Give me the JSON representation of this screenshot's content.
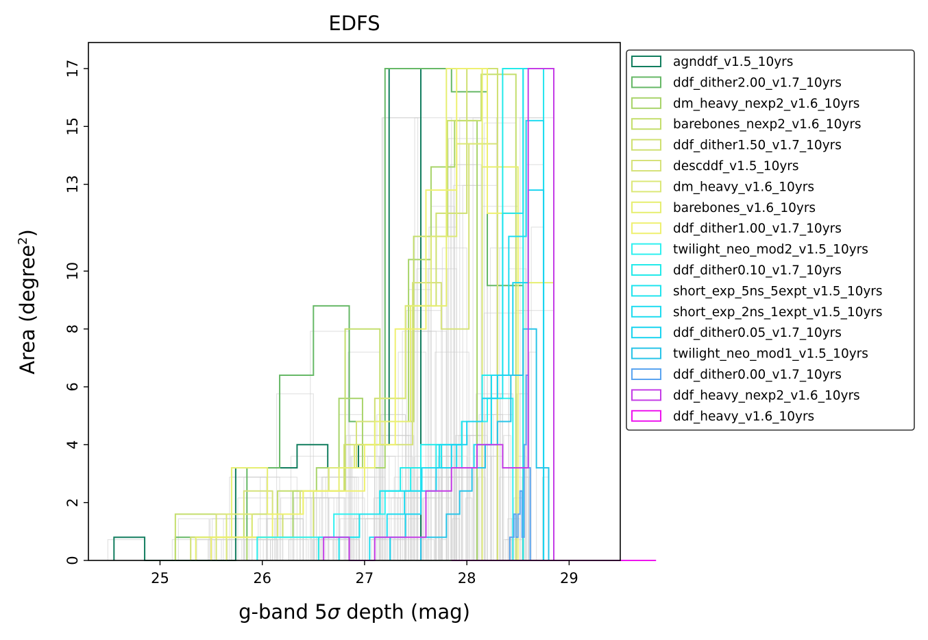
{
  "chart_data": {
    "type": "histogram",
    "title": "EDFS",
    "xlabel": "g-band 5σ depth (mag)",
    "xlabel_parts": {
      "pre": "g-band 5",
      "sym": "σ",
      "post": " depth (mag)"
    },
    "ylabel": "Area (degree²)",
    "ylabel_parts": {
      "pre": "Area (degree",
      "sup": "2",
      "post": ")"
    },
    "xlim": [
      24.3,
      29.5
    ],
    "ylim": [
      0,
      17.9
    ],
    "xticks": [
      25,
      26,
      27,
      28,
      29
    ],
    "yticks": [
      0,
      2,
      4,
      6,
      8,
      10,
      13,
      15,
      17
    ],
    "background_histograms_color": "#cccccc",
    "legend_placement": "outside-right",
    "series": [
      {
        "name": "agnddf_v1.5_10yrs",
        "color": "#117d5e",
        "edges": [
          24.55,
          24.85,
          25.14,
          25.44,
          25.74,
          26.04,
          26.34,
          26.64,
          26.94,
          27.24,
          27.55
        ],
        "counts": [
          0.8,
          0,
          0,
          0,
          3.2,
          3.2,
          4,
          3.2,
          4,
          17
        ]
      },
      {
        "name": "ddf_dither2.00_v1.7_10yrs",
        "color": "#66b866",
        "edges": [
          25.15,
          25.5,
          25.85,
          26.17,
          26.5,
          26.85,
          27.2,
          27.52,
          27.85,
          28.2,
          28.55
        ],
        "counts": [
          0.8,
          0.8,
          3.2,
          6.4,
          8.8,
          4.8,
          17,
          17,
          16.2,
          9.5
        ]
      },
      {
        "name": "dm_heavy_nexp2_v1.6_10yrs",
        "color": "#a8d46a",
        "edges": [
          25.85,
          26.08,
          26.3,
          26.53,
          26.75,
          26.98,
          27.2,
          27.43,
          27.65,
          27.88,
          28.1
        ],
        "counts": [
          0.8,
          0.8,
          2.4,
          3.2,
          5.6,
          3.2,
          4.8,
          10.4,
          13.6,
          15.2
        ]
      },
      {
        "name": "barebones_nexp2_v1.6_10yrs",
        "color": "#c4de6c",
        "edges": [
          25.15,
          25.48,
          25.82,
          26.15,
          26.48,
          26.81,
          27.15,
          27.48,
          27.81,
          28.14,
          28.48
        ],
        "counts": [
          1.6,
          1.6,
          0.8,
          2.4,
          2.4,
          8,
          4.8,
          11.2,
          15.2,
          16.8
        ]
      },
      {
        "name": "ddf_dither1.50_v1.7_10yrs",
        "color": "#cfe070",
        "edges": [
          25.3,
          25.6,
          25.9,
          26.2,
          26.5,
          26.8,
          27.1,
          27.4,
          27.7,
          28.0,
          28.3
        ],
        "counts": [
          0.8,
          0.8,
          1.6,
          0.8,
          2.4,
          4,
          5.6,
          8.8,
          12,
          17
        ]
      },
      {
        "name": "descddf_v1.5_10yrs",
        "color": "#d6e27a",
        "edges": [
          25.55,
          25.82,
          26.1,
          26.37,
          26.65,
          26.92,
          27.2,
          27.47,
          27.75,
          28.02,
          28.3
        ],
        "counts": [
          1.6,
          2.4,
          1.6,
          2.4,
          3.2,
          4.8,
          4,
          9.6,
          8,
          14.4
        ]
      },
      {
        "name": "dm_heavy_v1.6_10yrs",
        "color": "#dce878",
        "edges": [
          25.65,
          25.9,
          26.15,
          26.4,
          26.65,
          26.9,
          27.15,
          27.4,
          27.65,
          27.9,
          28.15
        ],
        "counts": [
          1.6,
          0.8,
          1.6,
          2.4,
          3.2,
          4,
          5.6,
          8.8,
          11.2,
          14.4
        ]
      },
      {
        "name": "barebones_v1.6_10yrs",
        "color": "#e6ee70",
        "edges": [
          25.35,
          25.7,
          26.05,
          26.4,
          26.75,
          27.1,
          27.45,
          27.8,
          28.15,
          28.5,
          28.85
        ],
        "counts": [
          0.8,
          3.2,
          1.6,
          2.4,
          3.2,
          4.8,
          8.8,
          17,
          13.6,
          9.6
        ]
      },
      {
        "name": "ddf_dither1.00_v1.7_10yrs",
        "color": "#eef070",
        "edges": [
          25.5,
          25.8,
          26.1,
          26.4,
          26.7,
          27.0,
          27.3,
          27.6,
          27.9,
          28.2,
          28.5
        ],
        "counts": [
          0.8,
          0.8,
          1.6,
          2.4,
          2.4,
          4,
          8,
          12.8,
          17,
          12
        ]
      },
      {
        "name": "twilight_neo_mod2_v1.5_10yrs",
        "color": "#2ff0f0",
        "edges": [
          25.95,
          26.2,
          26.45,
          26.7,
          26.95,
          27.2,
          27.45,
          27.7,
          27.95,
          28.2,
          28.45
        ],
        "counts": [
          0.8,
          0.8,
          0.8,
          1.6,
          1.6,
          2.4,
          3.2,
          4,
          4.8,
          5.6
        ]
      },
      {
        "name": "ddf_dither0.10_v1.7_10yrs",
        "color": "#22eaea",
        "edges": [
          26.55,
          26.75,
          26.95,
          27.15,
          27.35,
          27.55,
          27.75,
          27.95,
          28.15,
          28.35,
          28.55
        ],
        "counts": [
          0.8,
          0.8,
          1.6,
          2.4,
          3.2,
          4,
          3.2,
          4.8,
          6.4,
          17
        ]
      },
      {
        "name": "short_exp_5ns_5expt_v1.5_10yrs",
        "color": "#20e4ee",
        "edges": [
          26.75,
          26.95,
          27.15,
          27.35,
          27.55,
          27.75,
          27.95,
          28.15,
          28.35,
          28.55,
          28.75
        ],
        "counts": [
          0.8,
          1.6,
          2.4,
          2.4,
          3.2,
          4,
          4.8,
          5.6,
          12,
          17
        ]
      },
      {
        "name": "short_exp_2ns_1expt_v1.5_10yrs",
        "color": "#1edcf0",
        "edges": [
          27.05,
          27.22,
          27.39,
          27.56,
          27.73,
          27.9,
          28.07,
          28.24,
          28.41,
          28.58,
          28.75
        ],
        "counts": [
          0.8,
          1.6,
          2.4,
          3.2,
          4,
          3.2,
          4,
          6.4,
          11.2,
          15.2
        ]
      },
      {
        "name": "ddf_dither0.05_v1.7_10yrs",
        "color": "#1ad4f0",
        "edges": [
          27.25,
          27.4,
          27.55,
          27.7,
          27.85,
          28.0,
          28.15,
          28.3,
          28.45,
          28.6,
          28.75
        ],
        "counts": [
          0.8,
          1.6,
          2.4,
          3.2,
          4,
          4.8,
          5.6,
          6.4,
          9.6,
          12.8
        ]
      },
      {
        "name": "twilight_neo_mod1_v1.5_10yrs",
        "color": "#28c4e8",
        "edges": [
          27.55,
          27.68,
          27.8,
          27.93,
          28.05,
          28.18,
          28.3,
          28.43,
          28.55,
          28.68,
          28.8
        ],
        "counts": [
          0.8,
          0.8,
          1.6,
          2.4,
          3.2,
          4,
          4.8,
          6.4,
          8,
          3.2
        ]
      },
      {
        "name": "ddf_dither0.00_v1.7_10yrs",
        "color": "#5aa4f0",
        "edges": [
          28.42,
          28.44,
          28.46,
          28.48,
          28.5,
          28.52,
          28.54,
          28.56,
          28.58,
          28.6,
          28.62
        ],
        "counts": [
          0.8,
          0.8,
          1.6,
          0.8,
          1.6,
          2.4,
          0.8,
          4,
          6.4,
          3.2
        ]
      },
      {
        "name": "ddf_heavy_nexp2_v1.6_10yrs",
        "color": "#c43ce6",
        "edges": [
          26.6,
          26.85,
          27.1,
          27.35,
          27.6,
          27.85,
          28.1,
          28.35,
          28.6,
          28.85,
          29.1
        ],
        "counts": [
          0.8,
          0,
          0.8,
          0.8,
          2.4,
          3.2,
          4,
          3.2,
          17,
          0
        ]
      },
      {
        "name": "ddf_heavy_v1.6_10yrs",
        "color": "#ee14ee",
        "edges": [
          27.85,
          28.05,
          28.25,
          28.45,
          28.65,
          28.85,
          29.05,
          29.25,
          29.45,
          29.65,
          29.85
        ],
        "counts": [
          0,
          0,
          0,
          0,
          0,
          0,
          0,
          0,
          0,
          0
        ]
      }
    ]
  }
}
